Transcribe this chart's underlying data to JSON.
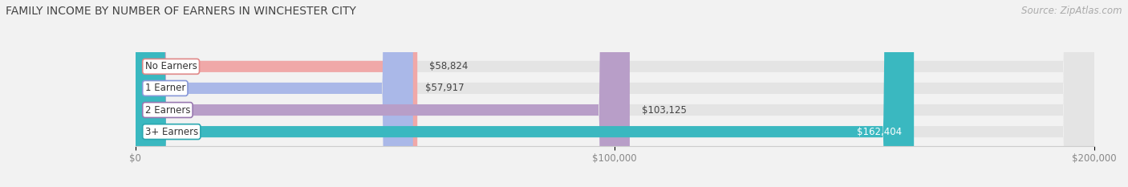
{
  "title": "FAMILY INCOME BY NUMBER OF EARNERS IN WINCHESTER CITY",
  "source": "Source: ZipAtlas.com",
  "categories": [
    "No Earners",
    "1 Earner",
    "2 Earners",
    "3+ Earners"
  ],
  "values": [
    58824,
    57917,
    103125,
    162404
  ],
  "bar_colors": [
    "#f0a8a8",
    "#aab8e8",
    "#b89ec8",
    "#3ab8c0"
  ],
  "bar_edge_colors": [
    "#e08888",
    "#8898d8",
    "#9878b0",
    "#2aa8b0"
  ],
  "value_labels": [
    "$58,824",
    "$57,917",
    "$103,125",
    "$162,404"
  ],
  "value_label_colors": [
    "#555555",
    "#555555",
    "#555555",
    "#ffffff"
  ],
  "xlim": [
    0,
    200000
  ],
  "xticks": [
    0,
    100000,
    200000
  ],
  "xtick_labels": [
    "$0",
    "$100,000",
    "$200,000"
  ],
  "background_color": "#f2f2f2",
  "bar_background_color": "#e4e4e4",
  "title_fontsize": 10,
  "source_fontsize": 8.5,
  "bar_height": 0.52
}
